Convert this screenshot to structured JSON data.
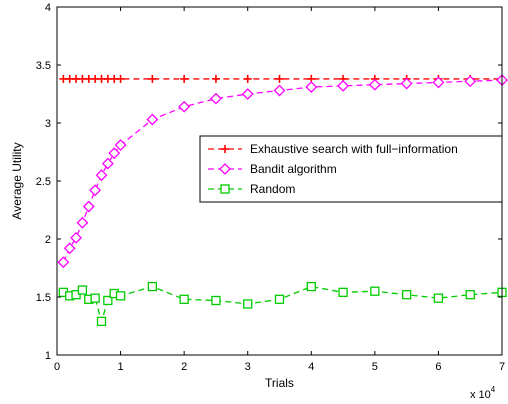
{
  "chart_data": {
    "type": "line",
    "title": "",
    "xlabel": "Trials",
    "ylabel": "Average Utility",
    "xlim": [
      0,
      70000
    ],
    "ylim": [
      1,
      4
    ],
    "x_exponent_label": "x 10",
    "x_exponent_power": "4",
    "x_tick_labels": [
      "0",
      "1",
      "2",
      "3",
      "4",
      "5",
      "6",
      "7"
    ],
    "y_tick_labels": [
      "1",
      "1.5",
      "2",
      "2.5",
      "3",
      "3.5",
      "4"
    ],
    "x_ticks": [
      0,
      10000,
      20000,
      30000,
      40000,
      50000,
      60000,
      70000
    ],
    "y_ticks": [
      1,
      1.5,
      2,
      2.5,
      3,
      3.5,
      4
    ],
    "grid": false,
    "legend_placement": "center-right",
    "series": [
      {
        "name": "Exhaustive search with full−information",
        "color": "#ff0000",
        "marker": "plus",
        "line_style": "dashed",
        "x": [
          1000,
          2000,
          3000,
          4000,
          5000,
          6000,
          7000,
          8000,
          9000,
          10000,
          15000,
          20000,
          25000,
          30000,
          35000,
          40000,
          45000,
          50000,
          55000,
          60000,
          65000,
          70000
        ],
        "y": [
          3.38,
          3.38,
          3.38,
          3.38,
          3.38,
          3.38,
          3.38,
          3.38,
          3.38,
          3.38,
          3.38,
          3.38,
          3.38,
          3.38,
          3.38,
          3.38,
          3.38,
          3.38,
          3.38,
          3.38,
          3.38,
          3.38
        ]
      },
      {
        "name": "Bandit algorithm",
        "color": "#ff00ff",
        "marker": "diamond",
        "line_style": "dashed",
        "x": [
          1000,
          2000,
          3000,
          4000,
          5000,
          6000,
          7000,
          8000,
          9000,
          10000,
          15000,
          20000,
          25000,
          30000,
          35000,
          40000,
          45000,
          50000,
          55000,
          60000,
          65000,
          70000
        ],
        "y": [
          1.8,
          1.92,
          2.01,
          2.14,
          2.28,
          2.42,
          2.55,
          2.65,
          2.74,
          2.81,
          3.03,
          3.14,
          3.21,
          3.25,
          3.28,
          3.31,
          3.32,
          3.33,
          3.34,
          3.35,
          3.36,
          3.37
        ]
      },
      {
        "name": "Random",
        "color": "#00cc00",
        "marker": "square",
        "line_style": "dashed",
        "x": [
          1000,
          2000,
          3000,
          4000,
          5000,
          6000,
          7000,
          8000,
          9000,
          10000,
          15000,
          20000,
          25000,
          30000,
          35000,
          40000,
          45000,
          50000,
          55000,
          60000,
          65000,
          70000
        ],
        "y": [
          1.54,
          1.51,
          1.52,
          1.56,
          1.48,
          1.49,
          1.29,
          1.47,
          1.53,
          1.51,
          1.59,
          1.48,
          1.47,
          1.44,
          1.48,
          1.59,
          1.54,
          1.55,
          1.52,
          1.49,
          1.52,
          1.54
        ]
      }
    ]
  }
}
